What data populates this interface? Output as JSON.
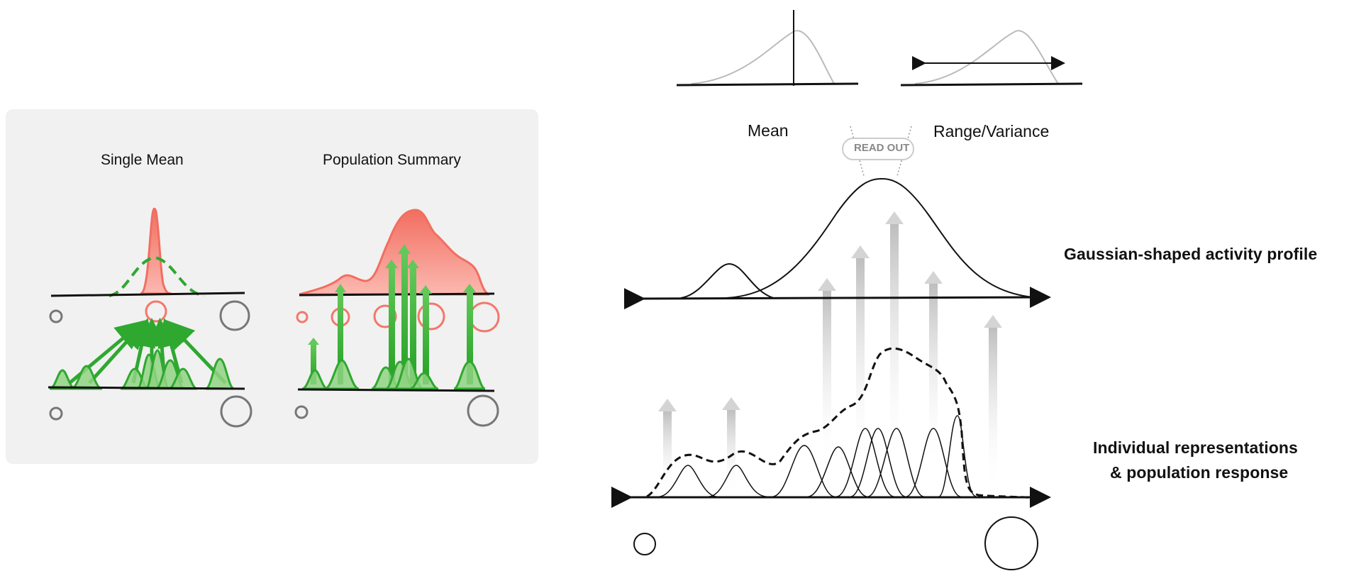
{
  "left_panel": {
    "single_mean_title": "Single Mean",
    "population_summary_title": "Population Summary"
  },
  "right_panel": {
    "mean_label": "Mean",
    "range_label": "Range/Variance",
    "readout_label": "READ OUT",
    "gaussian_title": "Gaussian-shaped activity profile",
    "individual_title_line1": "Individual representations",
    "individual_title_line2": "& population response"
  },
  "colors": {
    "panel_bg": "#f1f1f1",
    "red": "#f4776a",
    "red_fill": "#f8938a",
    "green": "#2fa82f",
    "green_fill": "#7ccf6e",
    "gray_circle": "#777777"
  }
}
